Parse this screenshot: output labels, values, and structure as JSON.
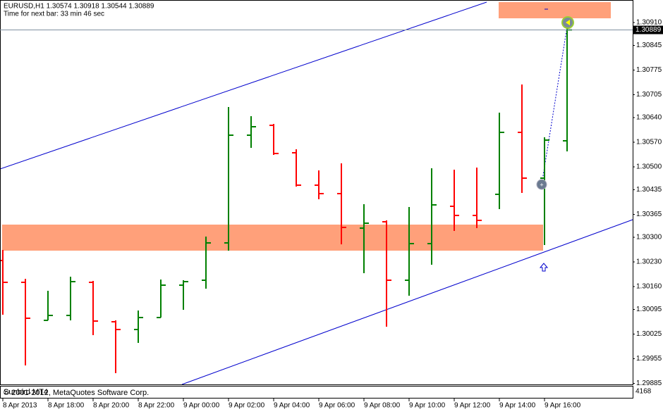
{
  "chart_data": {
    "type": "ohlc",
    "title": "EURUSD,H1  1.30574 1.30918 1.30544 1.30889",
    "subtitle": "Time for next bar: 33 min 46 sec",
    "footer_name": "Sunbird MT4",
    "footer_copyright": "© 2001-2012, MetaQuotes Software Corp.",
    "volume_label": "4168",
    "up_color": "#008000",
    "down_color": "#ff0000",
    "categories": [
      "8 Apr 2013",
      null,
      "8 Apr 18:00",
      null,
      "8 Apr 20:00",
      null,
      "8 Apr 22:00",
      null,
      "9 Apr 00:00",
      null,
      "9 Apr 02:00",
      null,
      "9 Apr 04:00",
      null,
      "9 Apr 06:00",
      null,
      "9 Apr 08:00",
      null,
      "9 Apr 10:00",
      null,
      "9 Apr 12:00",
      null,
      "9 Apr 14:00",
      null,
      "9 Apr 16:00",
      null
    ],
    "open": [
      1.30234,
      1.30172,
      1.30064,
      1.30078,
      1.30172,
      1.3006,
      1.30038,
      1.30072,
      1.30164,
      1.30178,
      1.30284,
      1.3059,
      1.30618,
      1.3054,
      1.30448,
      1.30424,
      1.30326,
      1.30344,
      1.30178,
      1.30282,
      1.30388,
      1.30362,
      1.30422,
      1.30598,
      1.30468,
      1.30574
    ],
    "high": [
      1.30264,
      1.30182,
      1.30148,
      1.30188,
      1.30176,
      1.30064,
      1.30092,
      1.3018,
      1.30178,
      1.30302,
      1.3067,
      1.30644,
      1.30622,
      1.3055,
      1.3049,
      1.3051,
      1.30394,
      1.30348,
      1.30386,
      1.30496,
      1.30492,
      1.30498,
      1.30654,
      1.30734,
      1.30584,
      1.30918
    ],
    "low": [
      1.3008,
      1.29936,
      1.30064,
      1.30064,
      1.30022,
      1.29914,
      1.3,
      1.30072,
      1.30094,
      1.30154,
      1.30262,
      1.30554,
      1.30534,
      1.30444,
      1.30408,
      1.3028,
      1.30198,
      1.30046,
      1.30134,
      1.30222,
      1.30318,
      1.30326,
      1.3038,
      1.30426,
      1.30278,
      1.30544
    ],
    "close": [
      1.30172,
      1.3007,
      1.30078,
      1.30174,
      1.30062,
      1.30038,
      1.30072,
      1.30164,
      1.30174,
      1.30284,
      1.3059,
      1.30614,
      1.30538,
      1.30448,
      1.30424,
      1.30328,
      1.3034,
      1.30178,
      1.30282,
      1.30392,
      1.30362,
      1.30348,
      1.30598,
      1.30468,
      1.30576,
      1.30889
    ],
    "ylim": [
      1.29882,
      1.30974
    ],
    "yticks": [
      {
        "value": 1.3091,
        "label": "1.30910"
      },
      1.30845,
      1.30775,
      1.30705,
      {
        "value": 1.3064,
        "label": "1.30640"
      },
      {
        "value": 1.3057,
        "label": "1.30570"
      },
      {
        "value": 1.305,
        "label": "1.30500"
      },
      1.30435,
      1.30365,
      {
        "value": 1.303,
        "label": "1.30300"
      },
      {
        "value": 1.3023,
        "label": "1.30230"
      },
      {
        "value": 1.3016,
        "label": "1.30160"
      },
      1.30095,
      1.30025,
      1.29955,
      1.29885
    ],
    "current_price": {
      "value": 1.30889,
      "label": "1.30889"
    }
  }
}
